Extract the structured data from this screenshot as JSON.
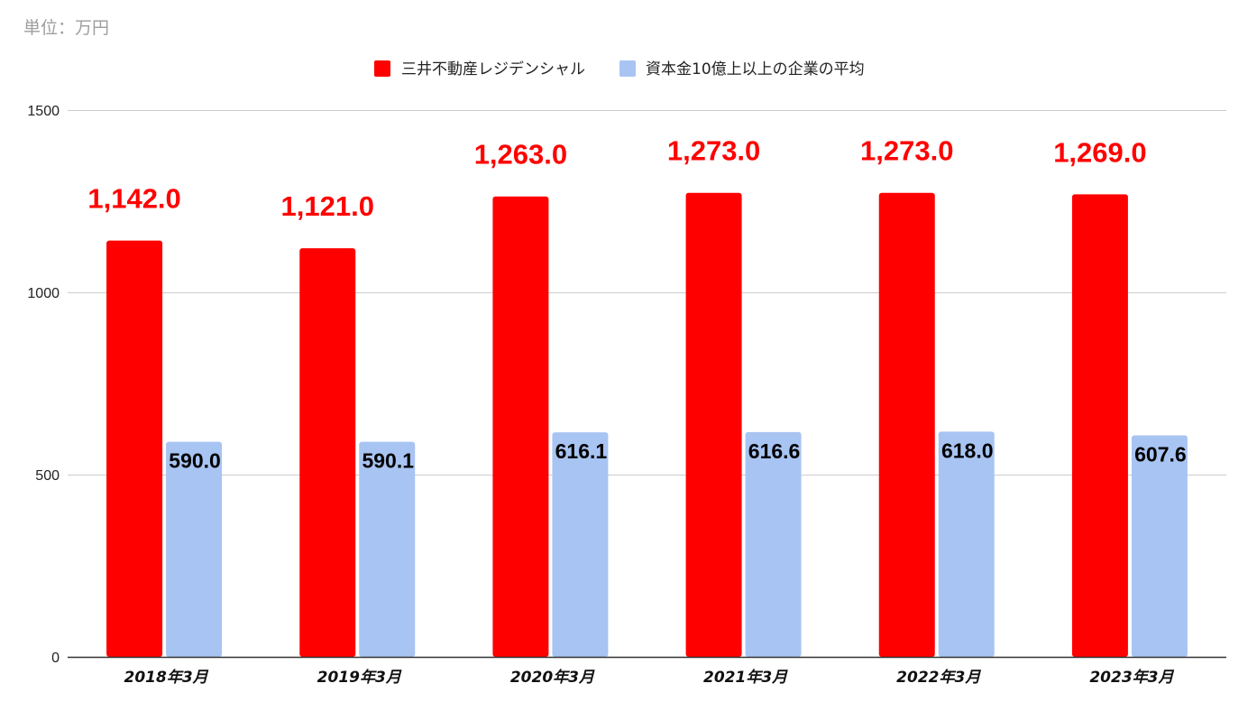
{
  "unit_label": "単位：万円",
  "chart_data": {
    "type": "bar",
    "categories": [
      "2018年3月",
      "2019年3月",
      "2020年3月",
      "2021年3月",
      "2022年3月",
      "2023年3月"
    ],
    "series": [
      {
        "name": "三井不動産レジデンシャル",
        "color": "#ff0000",
        "values": [
          1142.0,
          1121.0,
          1263.0,
          1273.0,
          1273.0,
          1269.0
        ],
        "labels": [
          "1,142.0",
          "1,121.0",
          "1,263.0",
          "1,273.0",
          "1,273.0",
          "1,269.0"
        ]
      },
      {
        "name": "資本金10億上以上の企業の平均",
        "color": "#a8c4f2",
        "values": [
          590.0,
          590.1,
          616.1,
          616.6,
          618.0,
          607.6
        ],
        "labels": [
          "590.0",
          "590.1",
          "616.1",
          "616.6",
          "618.0",
          "607.6"
        ]
      }
    ],
    "yticks": [
      "0",
      "500",
      "1000",
      "1500"
    ],
    "ylim": [
      0,
      1500
    ],
    "grid": true,
    "legend_position": "top"
  }
}
